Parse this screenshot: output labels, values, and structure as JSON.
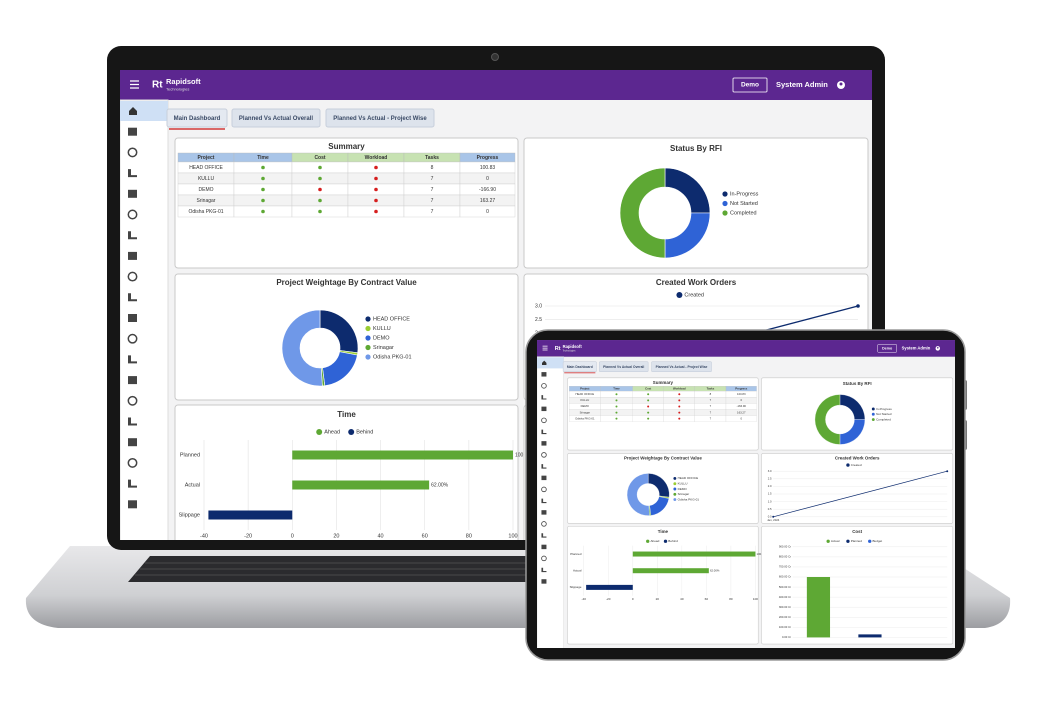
{
  "header": {
    "logo": "Rt",
    "brand": "Rapidsoft",
    "tagline": "Technologies",
    "env_button": "Demo",
    "user": "System Admin"
  },
  "tabs": [
    "Main Dashboard",
    "Planned Vs Actual Overall",
    "Planned Vs Actual - Project Wise"
  ],
  "summary": {
    "title": "Summary",
    "columns": [
      "Project",
      "Time",
      "Cost",
      "Workload",
      "Tasks",
      "Progress"
    ],
    "rows": [
      {
        "project": "HEAD OFFICE",
        "time": "#5ea834",
        "cost": "#5ea834",
        "workload": "#d61f1f",
        "tasks": 8,
        "progress": "100.83"
      },
      {
        "project": "KULLU",
        "time": "#5ea834",
        "cost": "#5ea834",
        "workload": "#d61f1f",
        "tasks": 7,
        "progress": "0"
      },
      {
        "project": "DEMO",
        "time": "#5ea834",
        "cost": "#d61f1f",
        "workload": "#d61f1f",
        "tasks": 7,
        "progress": "-166.90"
      },
      {
        "project": "Srinagar",
        "time": "#5ea834",
        "cost": "#5ea834",
        "workload": "#d61f1f",
        "tasks": 7,
        "progress": "163.27"
      },
      {
        "project": "Odisha PKG-01",
        "time": "#5ea834",
        "cost": "#5ea834",
        "workload": "#d61f1f",
        "tasks": 7,
        "progress": "0"
      }
    ]
  },
  "status_rfi": {
    "type": "donut",
    "title": "Status By RFI",
    "categories": [
      "In-Progress",
      "Not Started",
      "Completed"
    ],
    "values": [
      25,
      25,
      50
    ],
    "colors": [
      "#0d2b6e",
      "#2f63d6",
      "#5ea834"
    ]
  },
  "weightage": {
    "type": "donut",
    "title": "Project Weightage By Contract Value",
    "categories": [
      "HEAD OFFICE",
      "KULLU",
      "DEMO",
      "Srinagar",
      "Odisha PKG-01"
    ],
    "values": [
      27,
      1,
      20,
      1,
      51
    ],
    "colors": [
      "#0d2b6e",
      "#9acd32",
      "#2f63d6",
      "#5ea834",
      "#6f98e8"
    ]
  },
  "work_orders": {
    "type": "line",
    "title": "Created Work Orders",
    "categories": [
      "Jan, 2024",
      null
    ],
    "series": [
      {
        "name": "Created",
        "color": "#0d2b6e",
        "values": [
          0,
          3
        ]
      }
    ],
    "ylim": [
      0,
      3
    ],
    "yticks": [
      {
        "value": 0,
        "label": "0.0"
      },
      0.5,
      {
        "value": 1,
        "label": "1.0"
      },
      1.5,
      {
        "value": 2,
        "label": "2.0"
      },
      2.5,
      {
        "value": 3,
        "label": "3.0"
      }
    ],
    "grid": true
  },
  "time": {
    "type": "hbar",
    "title": "Time",
    "categories": [
      "Planned",
      "Actual",
      "Slippage"
    ],
    "series": [
      {
        "name": "Ahead",
        "color": "#5ea834",
        "values": [
          100,
          62,
          null
        ],
        "value_labels": [
          "100.00%",
          "62.00%",
          null
        ]
      },
      {
        "name": "Behind",
        "color": "#0d2b6e",
        "values": [
          null,
          null,
          -38
        ],
        "value_labels": [
          null,
          null,
          null
        ]
      }
    ],
    "xlim": [
      -40,
      100
    ],
    "xticks": [
      -40,
      -20,
      0,
      20,
      40,
      60,
      80,
      100
    ],
    "grid": true
  },
  "cost": {
    "type": "bar",
    "title": "Cost",
    "categories": [
      null
    ],
    "series": [
      {
        "name": "Actual",
        "color": "#5ea834",
        "values": [
          600
        ]
      },
      {
        "name": "Planned",
        "color": "#0d2b6e",
        "values": [
          30
        ]
      },
      {
        "name": "Budget",
        "color": "#2f63d6",
        "values": [
          0
        ]
      }
    ],
    "ylim": [
      0,
      900
    ],
    "yticks": [
      {
        "value": 0,
        "label": "0.00 Cr"
      },
      {
        "value": 100,
        "label": "100.00 Cr"
      },
      {
        "value": 200,
        "label": "200.00 Cr"
      },
      {
        "value": 300,
        "label": "300.00 Cr"
      },
      {
        "value": 400,
        "label": "400.00 Cr"
      },
      {
        "value": 500,
        "label": "500.00 Cr"
      },
      {
        "value": 600,
        "label": "600.00 Cr"
      },
      {
        "value": 700,
        "label": "700.00 Cr"
      },
      {
        "value": 800,
        "label": "800.00 Cr"
      },
      {
        "value": 900,
        "label": "900.00 Cr"
      }
    ],
    "grid": true
  }
}
